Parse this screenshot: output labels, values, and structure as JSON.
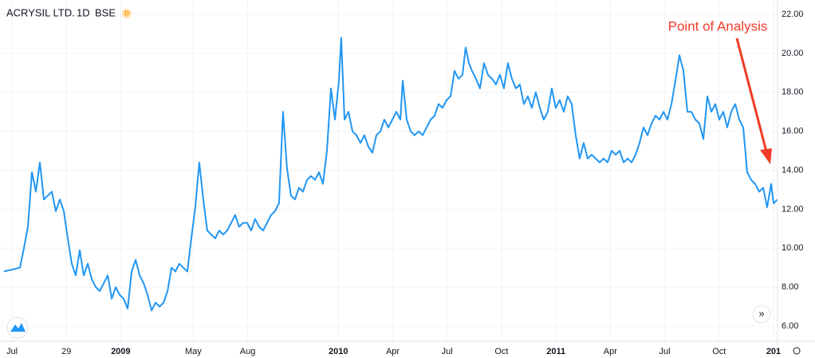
{
  "chart_data": {
    "type": "line",
    "title": "ACRYSIL LTD.",
    "interval": "1D",
    "exchange": "BSE",
    "badge": "D",
    "annotation": "Point of Analysis",
    "xlim": [
      -0.66,
      42.22
    ],
    "xticks": [
      {
        "value": 0,
        "label": "Jul"
      },
      {
        "value": 3,
        "label": "29"
      },
      {
        "value": 6,
        "label": "2009"
      },
      {
        "value": 10,
        "label": "May"
      },
      {
        "value": 13,
        "label": "Aug"
      },
      {
        "value": 18,
        "label": "2010"
      },
      {
        "value": 21,
        "label": "Apr"
      },
      {
        "value": 24,
        "label": "Jul"
      },
      {
        "value": 27,
        "label": "Oct"
      },
      {
        "value": 30,
        "label": "2011"
      },
      {
        "value": 33,
        "label": "Apr"
      },
      {
        "value": 36,
        "label": "Jul"
      },
      {
        "value": 39,
        "label": "Oct"
      },
      {
        "value": 42,
        "label": "201"
      }
    ],
    "ylim": [
      5.22,
      22.74
    ],
    "yticks": [
      {
        "value": 6,
        "label": "6.00"
      },
      {
        "value": 8,
        "label": "8.00"
      },
      {
        "value": 10,
        "label": "10.00"
      },
      {
        "value": 12,
        "label": "12.00"
      },
      {
        "value": 14,
        "label": "14.00"
      },
      {
        "value": 16,
        "label": "16.00"
      },
      {
        "value": 18,
        "label": "18.00"
      },
      {
        "value": 20,
        "label": "20.00"
      },
      {
        "value": 22,
        "label": "22.00"
      }
    ],
    "grid": true,
    "series": [
      {
        "name": "ACRYSIL LTD.",
        "color": "#2196f3",
        "x": [
          -0.44,
          0,
          0.44,
          0.66,
          0.88,
          1.1,
          1.32,
          1.54,
          1.76,
          1.98,
          2.2,
          2.42,
          2.64,
          2.86,
          3.08,
          3.3,
          3.52,
          3.74,
          3.96,
          4.18,
          4.4,
          4.62,
          4.84,
          5.06,
          5.28,
          5.5,
          5.72,
          5.94,
          6.16,
          6.38,
          6.6,
          6.82,
          7.04,
          7.26,
          7.48,
          7.7,
          7.92,
          8.14,
          8.36,
          8.58,
          8.8,
          9.01,
          9.23,
          9.45,
          9.67,
          9.89,
          10.11,
          10.33,
          10.55,
          10.77,
          10.99,
          11.21,
          11.43,
          11.65,
          11.87,
          12.09,
          12.31,
          12.53,
          12.75,
          12.97,
          13.19,
          13.41,
          13.63,
          13.85,
          14.07,
          14.29,
          14.51,
          14.73,
          14.95,
          15.17,
          15.39,
          15.61,
          15.83,
          16.05,
          16.27,
          16.49,
          16.71,
          16.93,
          17.15,
          17.37,
          17.59,
          17.81,
          18.03,
          18.16,
          18.34,
          18.56,
          18.78,
          19.0,
          19.22,
          19.44,
          19.66,
          19.88,
          20.1,
          20.32,
          20.54,
          20.76,
          20.98,
          21.2,
          21.42,
          21.55,
          21.77,
          21.99,
          22.21,
          22.43,
          22.65,
          22.87,
          23.09,
          23.31,
          23.53,
          23.75,
          23.97,
          24.19,
          24.41,
          24.63,
          24.85,
          25.02,
          25.2,
          25.37,
          25.59,
          25.81,
          26.03,
          26.25,
          26.47,
          26.69,
          26.91,
          27.13,
          27.35,
          27.57,
          27.79,
          28.01,
          28.23,
          28.45,
          28.67,
          28.89,
          29.11,
          29.33,
          29.55,
          29.77,
          29.99,
          30.21,
          30.43,
          30.65,
          30.87,
          31.09,
          31.31,
          31.53,
          31.75,
          31.97,
          32.19,
          32.41,
          32.63,
          32.85,
          33.07,
          33.29,
          33.51,
          33.73,
          33.95,
          34.17,
          34.39,
          34.61,
          34.83,
          35.05,
          35.27,
          35.49,
          35.71,
          35.93,
          36.15,
          36.37,
          36.59,
          36.81,
          37.03,
          37.25,
          37.47,
          37.69,
          37.91,
          38.13,
          38.35,
          38.57,
          38.79,
          39.01,
          39.23,
          39.45,
          39.67,
          39.89,
          40.11,
          40.33,
          40.55,
          40.77,
          40.99,
          41.21,
          41.43,
          41.65,
          41.87,
          42.0,
          42.22
        ],
        "values": [
          8.8,
          8.9,
          9.0,
          10.0,
          11.1,
          13.9,
          12.9,
          14.4,
          12.5,
          12.7,
          12.9,
          11.9,
          12.5,
          11.9,
          10.5,
          9.2,
          8.6,
          9.9,
          8.6,
          9.2,
          8.4,
          8.0,
          7.8,
          8.2,
          8.6,
          7.4,
          8.0,
          7.6,
          7.4,
          6.9,
          8.8,
          9.4,
          8.6,
          8.2,
          7.6,
          6.8,
          7.2,
          7.0,
          7.2,
          7.8,
          9.0,
          8.8,
          9.2,
          9.0,
          8.8,
          10.5,
          12.1,
          14.4,
          12.5,
          10.9,
          10.7,
          10.5,
          10.9,
          10.7,
          10.9,
          11.3,
          11.7,
          11.1,
          11.3,
          11.3,
          10.9,
          11.5,
          11.1,
          10.9,
          11.3,
          11.7,
          11.9,
          12.3,
          17.0,
          14.1,
          12.7,
          12.5,
          13.1,
          12.9,
          13.5,
          13.7,
          13.5,
          13.9,
          13.3,
          15.0,
          18.2,
          16.6,
          18.6,
          20.8,
          16.6,
          17.0,
          16.0,
          15.8,
          15.4,
          15.8,
          15.2,
          14.9,
          15.8,
          16.0,
          16.6,
          16.2,
          16.6,
          17.0,
          16.6,
          18.6,
          16.6,
          16.0,
          15.8,
          16.0,
          15.8,
          16.2,
          16.6,
          16.8,
          17.4,
          17.2,
          17.6,
          17.8,
          19.1,
          18.7,
          18.9,
          20.3,
          19.5,
          19.1,
          18.7,
          18.2,
          19.5,
          18.9,
          18.7,
          18.4,
          18.9,
          18.2,
          19.5,
          18.7,
          18.2,
          18.4,
          17.4,
          17.8,
          17.2,
          18.0,
          17.2,
          16.6,
          17.0,
          18.2,
          17.2,
          17.6,
          17.0,
          17.8,
          17.4,
          15.8,
          14.6,
          15.4,
          14.6,
          14.8,
          14.6,
          14.4,
          14.6,
          14.4,
          15.0,
          14.8,
          15.0,
          14.4,
          14.6,
          14.4,
          14.8,
          15.4,
          16.2,
          15.8,
          16.4,
          16.8,
          16.6,
          17.0,
          16.6,
          17.4,
          18.6,
          19.9,
          19.1,
          17.0,
          17.0,
          16.6,
          16.4,
          15.6,
          17.8,
          17.0,
          17.4,
          16.6,
          17.0,
          16.2,
          17.0,
          17.4,
          16.6,
          16.2,
          13.9,
          13.5,
          13.3,
          12.9,
          13.1,
          12.1,
          13.3,
          12.3,
          12.5
        ]
      }
    ]
  }
}
